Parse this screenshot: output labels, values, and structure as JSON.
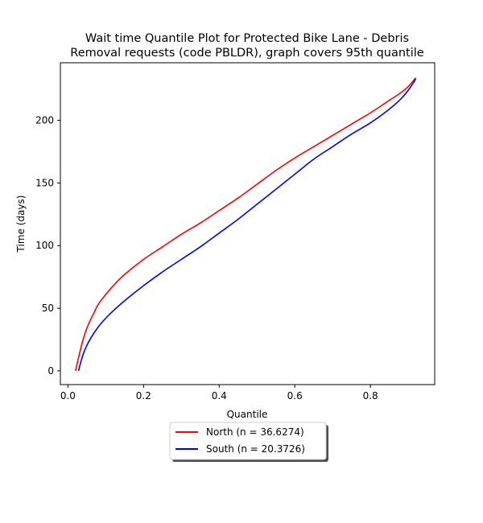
{
  "chart_data": {
    "type": "line",
    "title_lines": [
      "Wait time Quantile Plot for Protected Bike Lane - Debris",
      "Removal  requests (code PBLDR), graph covers 95th quantile"
    ],
    "xlabel": "Quantile",
    "ylabel": "Time (days)",
    "xlim": [
      -0.02,
      0.97
    ],
    "ylim": [
      -11,
      246
    ],
    "xticks": [
      0.0,
      0.2,
      0.4,
      0.6,
      0.8
    ],
    "xtick_labels": [
      "0.0",
      "0.2",
      "0.4",
      "0.6",
      "0.8"
    ],
    "yticks": [
      0,
      50,
      100,
      150,
      200
    ],
    "ytick_labels": [
      "0",
      "50",
      "100",
      "150",
      "200"
    ],
    "grid": false,
    "legend_placement": "below-center",
    "series": [
      {
        "name": "North (n = 36.6274)",
        "color": "#ff0000",
        "x": [
          0.02,
          0.03,
          0.04,
          0.05,
          0.06,
          0.07,
          0.08,
          0.1,
          0.12,
          0.15,
          0.2,
          0.25,
          0.3,
          0.35,
          0.4,
          0.45,
          0.5,
          0.55,
          0.6,
          0.65,
          0.7,
          0.75,
          0.8,
          0.85,
          0.88,
          0.9,
          0.92
        ],
        "y": [
          0,
          13,
          25,
          34,
          41,
          47,
          53,
          61,
          68,
          77,
          89,
          99,
          109,
          118,
          128,
          138,
          149,
          160,
          170,
          179,
          188,
          197,
          206,
          216,
          222,
          227,
          234
        ]
      },
      {
        "name": "South (n = 20.3726)",
        "color": "#0000ff",
        "x": [
          0.028,
          0.035,
          0.045,
          0.06,
          0.08,
          0.1,
          0.12,
          0.15,
          0.2,
          0.25,
          0.3,
          0.35,
          0.4,
          0.45,
          0.5,
          0.55,
          0.6,
          0.65,
          0.7,
          0.75,
          0.8,
          0.85,
          0.88,
          0.9,
          0.92
        ],
        "y": [
          0,
          8,
          17,
          26,
          35,
          42,
          48,
          56,
          68,
          79,
          89,
          99,
          110,
          121,
          133,
          145,
          157,
          169,
          179,
          189,
          198,
          209,
          217,
          224,
          233
        ]
      }
    ]
  }
}
